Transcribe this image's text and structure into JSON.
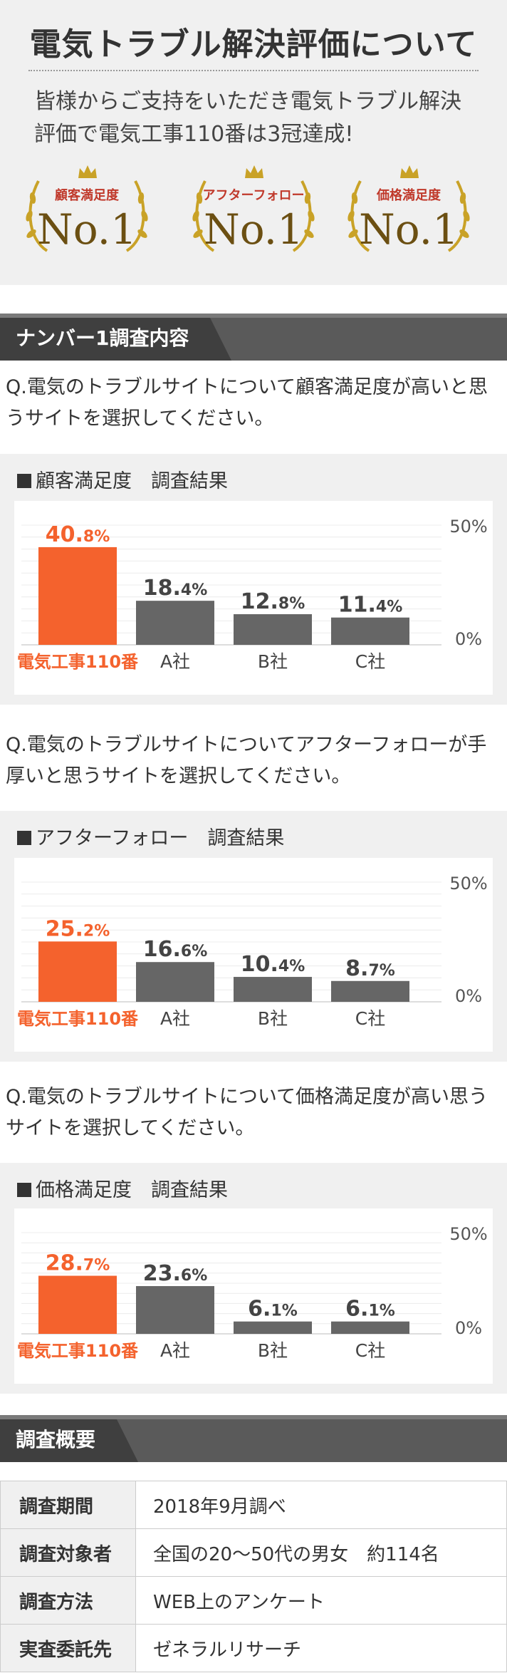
{
  "hero": {
    "title": "電気トラブル解決評価について",
    "subtitle_line1": "皆様からご支持をいただき電気トラブル解決",
    "subtitle_line2": "評価で電気工事110番は3冠達成!",
    "awards": [
      {
        "label": "顧客満足度",
        "rank": "No.1"
      },
      {
        "label": "アフターフォロー",
        "rank": "No.1"
      },
      {
        "label": "価格満足度",
        "rank": "No.1"
      }
    ],
    "colors": {
      "award_label": "#c0392b",
      "award_gold": "#c9a227"
    }
  },
  "section1": {
    "title": "ナンバー1調査内容"
  },
  "surveys": [
    {
      "question_line1": "Q.電気のトラブルサイトについて顧客満足度が高いと思",
      "question_line2": "うサイトを選択してください。",
      "title": "顧客満足度　調査結果"
    },
    {
      "question_line1": "Q.電気のトラブルサイトについてアフターフォローが手",
      "question_line2": "厚いと思うサイトを選択してください。",
      "title": "アフターフォロー　調査結果"
    },
    {
      "question_line1": "Q.電気のトラブルサイトについて価格満足度が高い思う",
      "question_line2": "サイトを選択してください。",
      "title": "価格満足度　調査結果"
    }
  ],
  "chart_data": [
    {
      "type": "bar",
      "title": "顧客満足度　調査結果",
      "categories": [
        "電気工事110番",
        "A社",
        "B社",
        "C社"
      ],
      "values": [
        40.8,
        18.4,
        12.8,
        11.4
      ],
      "value_labels": [
        [
          "40.",
          "8%"
        ],
        [
          "18.",
          "4%"
        ],
        [
          "12.",
          "8%"
        ],
        [
          "11.",
          "4%"
        ]
      ],
      "ylim": [
        0,
        50
      ],
      "ytick_labels": [
        "0%",
        "50%"
      ],
      "colors": [
        "#f4622d",
        "#666666",
        "#666666",
        "#666666"
      ],
      "grid": true
    },
    {
      "type": "bar",
      "title": "アフターフォロー　調査結果",
      "categories": [
        "電気工事110番",
        "A社",
        "B社",
        "C社"
      ],
      "values": [
        25.2,
        16.6,
        10.4,
        8.7
      ],
      "value_labels": [
        [
          "25.",
          "2%"
        ],
        [
          "16.",
          "6%"
        ],
        [
          "10.",
          "4%"
        ],
        [
          "8.",
          "7%"
        ]
      ],
      "ylim": [
        0,
        50
      ],
      "ytick_labels": [
        "0%",
        "50%"
      ],
      "colors": [
        "#f4622d",
        "#666666",
        "#666666",
        "#666666"
      ],
      "grid": true
    },
    {
      "type": "bar",
      "title": "価格満足度　調査結果",
      "categories": [
        "電気工事110番",
        "A社",
        "B社",
        "C社"
      ],
      "values": [
        28.7,
        23.6,
        6.1,
        6.1
      ],
      "value_labels": [
        [
          "28.",
          "7%"
        ],
        [
          "23.",
          "6%"
        ],
        [
          "6.",
          "1%"
        ],
        [
          "6.",
          "1%"
        ]
      ],
      "ylim": [
        0,
        50
      ],
      "ytick_labels": [
        "0%",
        "50%"
      ],
      "colors": [
        "#f4622d",
        "#666666",
        "#666666",
        "#666666"
      ],
      "grid": true
    }
  ],
  "section2": {
    "title": "調査概要"
  },
  "summary": [
    {
      "label": "調査期間",
      "value": "2018年9月調べ"
    },
    {
      "label": "調査対象者",
      "value": "全国の20～50代の男女　約114名"
    },
    {
      "label": "調査方法",
      "value": "WEB上のアンケート"
    },
    {
      "label": "実査委託先",
      "value": "ゼネラルリサーチ"
    }
  ]
}
